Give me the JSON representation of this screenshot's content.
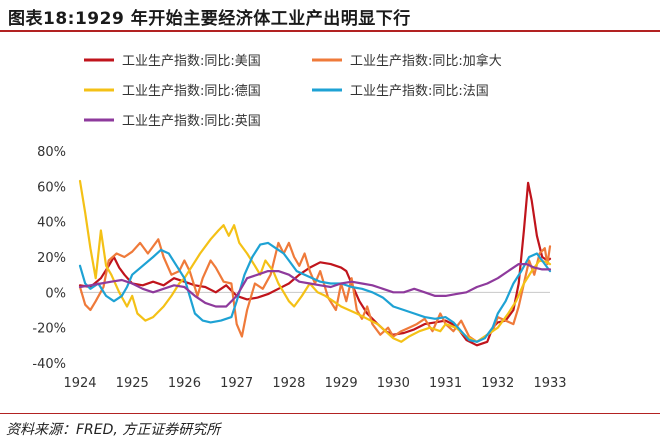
{
  "figure": {
    "title": "图表18:1929 年开始主要经济体工业产出明显下行",
    "source": "资料来源：FRED, 方正证券研究所"
  },
  "chart_data": {
    "type": "line",
    "title": "",
    "xlabel": "",
    "ylabel": "",
    "x_ticks": [
      "1924",
      "1925",
      "1926",
      "1927",
      "1928",
      "1929",
      "1930",
      "1931",
      "1932",
      "1933"
    ],
    "y_ticks": [
      "80%",
      "60%",
      "40%",
      "20%",
      "0%",
      "-20%",
      "-40%"
    ],
    "xlim": [
      1924,
      1933
    ],
    "ylim": [
      -40,
      80
    ],
    "y_unit": "%",
    "zero_line": true,
    "grid": false,
    "legend_position": "top",
    "series": [
      {
        "name": "工业生产指数:同比:美国",
        "color": "#c0141c",
        "points": [
          [
            1924.0,
            4
          ],
          [
            1924.2,
            3
          ],
          [
            1924.4,
            8
          ],
          [
            1924.55,
            15
          ],
          [
            1924.65,
            20
          ],
          [
            1924.75,
            14
          ],
          [
            1924.85,
            10
          ],
          [
            1925.0,
            5
          ],
          [
            1925.2,
            4
          ],
          [
            1925.4,
            6
          ],
          [
            1925.6,
            4
          ],
          [
            1925.8,
            8
          ],
          [
            1926.0,
            6
          ],
          [
            1926.2,
            4
          ],
          [
            1926.4,
            3
          ],
          [
            1926.6,
            0
          ],
          [
            1926.8,
            4
          ],
          [
            1927.0,
            -2
          ],
          [
            1927.2,
            -4
          ],
          [
            1927.4,
            -3
          ],
          [
            1927.6,
            -1
          ],
          [
            1927.8,
            2
          ],
          [
            1928.0,
            5
          ],
          [
            1928.2,
            10
          ],
          [
            1928.4,
            14
          ],
          [
            1928.6,
            17
          ],
          [
            1928.8,
            16
          ],
          [
            1929.0,
            14
          ],
          [
            1929.1,
            12
          ],
          [
            1929.2,
            5
          ],
          [
            1929.35,
            -5
          ],
          [
            1929.5,
            -12
          ],
          [
            1929.7,
            -18
          ],
          [
            1929.85,
            -22
          ],
          [
            1930.0,
            -24
          ],
          [
            1930.2,
            -23
          ],
          [
            1930.4,
            -21
          ],
          [
            1930.6,
            -18
          ],
          [
            1930.8,
            -17
          ],
          [
            1931.0,
            -16
          ],
          [
            1931.2,
            -19
          ],
          [
            1931.4,
            -27
          ],
          [
            1931.6,
            -30
          ],
          [
            1931.8,
            -28
          ],
          [
            1931.9,
            -20
          ],
          [
            1932.0,
            -17
          ],
          [
            1932.15,
            -16
          ],
          [
            1932.3,
            -10
          ],
          [
            1932.4,
            5
          ],
          [
            1932.5,
            35
          ],
          [
            1932.58,
            62
          ],
          [
            1932.65,
            52
          ],
          [
            1932.75,
            32
          ],
          [
            1932.85,
            20
          ],
          [
            1932.95,
            18
          ],
          [
            1933.0,
            19
          ]
        ]
      },
      {
        "name": "工业生产指数:同比:加拿大",
        "color": "#ef7a3a",
        "points": [
          [
            1924.0,
            3
          ],
          [
            1924.1,
            -7
          ],
          [
            1924.2,
            -10
          ],
          [
            1924.3,
            -5
          ],
          [
            1924.45,
            3
          ],
          [
            1924.55,
            18
          ],
          [
            1924.7,
            22
          ],
          [
            1924.85,
            20
          ],
          [
            1925.0,
            23
          ],
          [
            1925.15,
            28
          ],
          [
            1925.3,
            22
          ],
          [
            1925.4,
            26
          ],
          [
            1925.5,
            30
          ],
          [
            1925.6,
            20
          ],
          [
            1925.75,
            10
          ],
          [
            1925.9,
            12
          ],
          [
            1926.0,
            18
          ],
          [
            1926.1,
            12
          ],
          [
            1926.25,
            -2
          ],
          [
            1926.35,
            8
          ],
          [
            1926.5,
            18
          ],
          [
            1926.6,
            14
          ],
          [
            1926.75,
            6
          ],
          [
            1926.9,
            5
          ],
          [
            1927.0,
            -18
          ],
          [
            1927.1,
            -25
          ],
          [
            1927.2,
            -10
          ],
          [
            1927.35,
            5
          ],
          [
            1927.5,
            2
          ],
          [
            1927.65,
            10
          ],
          [
            1927.8,
            28
          ],
          [
            1927.9,
            22
          ],
          [
            1928.0,
            28
          ],
          [
            1928.1,
            20
          ],
          [
            1928.2,
            15
          ],
          [
            1928.3,
            22
          ],
          [
            1928.4,
            12
          ],
          [
            1928.5,
            5
          ],
          [
            1928.6,
            12
          ],
          [
            1928.75,
            -3
          ],
          [
            1928.9,
            -10
          ],
          [
            1929.0,
            5
          ],
          [
            1929.1,
            -5
          ],
          [
            1929.2,
            8
          ],
          [
            1929.3,
            -10
          ],
          [
            1929.4,
            -15
          ],
          [
            1929.5,
            -8
          ],
          [
            1929.6,
            -18
          ],
          [
            1929.75,
            -24
          ],
          [
            1929.9,
            -20
          ],
          [
            1930.0,
            -25
          ],
          [
            1930.15,
            -22
          ],
          [
            1930.3,
            -20
          ],
          [
            1930.45,
            -18
          ],
          [
            1930.6,
            -15
          ],
          [
            1930.75,
            -22
          ],
          [
            1930.9,
            -12
          ],
          [
            1931.0,
            -18
          ],
          [
            1931.15,
            -22
          ],
          [
            1931.3,
            -16
          ],
          [
            1931.45,
            -25
          ],
          [
            1931.6,
            -28
          ],
          [
            1931.75,
            -25
          ],
          [
            1931.9,
            -22
          ],
          [
            1932.0,
            -14
          ],
          [
            1932.15,
            -16
          ],
          [
            1932.3,
            -18
          ],
          [
            1932.4,
            -8
          ],
          [
            1932.5,
            5
          ],
          [
            1932.6,
            18
          ],
          [
            1932.7,
            10
          ],
          [
            1932.8,
            22
          ],
          [
            1932.9,
            25
          ],
          [
            1932.95,
            16
          ],
          [
            1933.0,
            26
          ]
        ]
      },
      {
        "name": "工业生产指数:同比:德国",
        "color": "#f4c116",
        "points": [
          [
            1924.0,
            63
          ],
          [
            1924.1,
            45
          ],
          [
            1924.2,
            25
          ],
          [
            1924.3,
            8
          ],
          [
            1924.4,
            35
          ],
          [
            1924.5,
            15
          ],
          [
            1924.6,
            10
          ],
          [
            1924.75,
            0
          ],
          [
            1924.9,
            -8
          ],
          [
            1925.0,
            -2
          ],
          [
            1925.1,
            -12
          ],
          [
            1925.25,
            -16
          ],
          [
            1925.4,
            -14
          ],
          [
            1925.6,
            -8
          ],
          [
            1925.75,
            -2
          ],
          [
            1925.9,
            5
          ],
          [
            1926.0,
            8
          ],
          [
            1926.15,
            15
          ],
          [
            1926.3,
            22
          ],
          [
            1926.5,
            30
          ],
          [
            1926.65,
            35
          ],
          [
            1926.75,
            38
          ],
          [
            1926.85,
            32
          ],
          [
            1926.95,
            38
          ],
          [
            1927.05,
            28
          ],
          [
            1927.2,
            22
          ],
          [
            1927.35,
            15
          ],
          [
            1927.45,
            10
          ],
          [
            1927.55,
            18
          ],
          [
            1927.7,
            12
          ],
          [
            1927.8,
            5
          ],
          [
            1927.9,
            0
          ],
          [
            1928.0,
            -5
          ],
          [
            1928.1,
            -8
          ],
          [
            1928.25,
            -2
          ],
          [
            1928.4,
            5
          ],
          [
            1928.55,
            0
          ],
          [
            1928.7,
            -2
          ],
          [
            1928.85,
            -5
          ],
          [
            1929.0,
            -8
          ],
          [
            1929.15,
            -10
          ],
          [
            1929.3,
            -12
          ],
          [
            1929.5,
            -15
          ],
          [
            1929.7,
            -18
          ],
          [
            1929.85,
            -22
          ],
          [
            1930.0,
            -26
          ],
          [
            1930.15,
            -28
          ],
          [
            1930.3,
            -25
          ],
          [
            1930.5,
            -22
          ],
          [
            1930.7,
            -20
          ],
          [
            1930.9,
            -22
          ],
          [
            1931.0,
            -18
          ],
          [
            1931.2,
            -20
          ],
          [
            1931.4,
            -25
          ],
          [
            1931.6,
            -28
          ],
          [
            1931.8,
            -24
          ],
          [
            1932.0,
            -20
          ],
          [
            1932.2,
            -12
          ],
          [
            1932.35,
            -5
          ],
          [
            1932.5,
            5
          ],
          [
            1932.65,
            12
          ],
          [
            1932.8,
            18
          ],
          [
            1932.95,
            17
          ],
          [
            1933.0,
            16
          ]
        ]
      },
      {
        "name": "工业生产指数:同比:法国",
        "color": "#1ea2d4",
        "points": [
          [
            1924.0,
            15
          ],
          [
            1924.1,
            5
          ],
          [
            1924.2,
            2
          ],
          [
            1924.35,
            5
          ],
          [
            1924.5,
            -2
          ],
          [
            1924.65,
            -5
          ],
          [
            1924.8,
            -2
          ],
          [
            1924.9,
            3
          ],
          [
            1925.0,
            10
          ],
          [
            1925.2,
            15
          ],
          [
            1925.4,
            20
          ],
          [
            1925.55,
            24
          ],
          [
            1925.7,
            22
          ],
          [
            1925.85,
            15
          ],
          [
            1926.0,
            8
          ],
          [
            1926.1,
            -2
          ],
          [
            1926.2,
            -12
          ],
          [
            1926.35,
            -16
          ],
          [
            1926.5,
            -17
          ],
          [
            1926.7,
            -16
          ],
          [
            1926.9,
            -14
          ],
          [
            1927.0,
            -5
          ],
          [
            1927.15,
            10
          ],
          [
            1927.3,
            20
          ],
          [
            1927.45,
            27
          ],
          [
            1927.6,
            28
          ],
          [
            1927.75,
            25
          ],
          [
            1927.9,
            22
          ],
          [
            1928.0,
            18
          ],
          [
            1928.15,
            12
          ],
          [
            1928.3,
            10
          ],
          [
            1928.45,
            8
          ],
          [
            1928.6,
            6
          ],
          [
            1928.8,
            5
          ],
          [
            1929.0,
            5
          ],
          [
            1929.2,
            3
          ],
          [
            1929.4,
            2
          ],
          [
            1929.6,
            0
          ],
          [
            1929.8,
            -3
          ],
          [
            1930.0,
            -8
          ],
          [
            1930.2,
            -10
          ],
          [
            1930.4,
            -12
          ],
          [
            1930.6,
            -14
          ],
          [
            1930.8,
            -15
          ],
          [
            1931.0,
            -14
          ],
          [
            1931.15,
            -17
          ],
          [
            1931.3,
            -22
          ],
          [
            1931.45,
            -27
          ],
          [
            1931.6,
            -28
          ],
          [
            1931.75,
            -26
          ],
          [
            1931.9,
            -20
          ],
          [
            1932.0,
            -12
          ],
          [
            1932.15,
            -5
          ],
          [
            1932.3,
            5
          ],
          [
            1932.45,
            12
          ],
          [
            1932.6,
            20
          ],
          [
            1932.75,
            22
          ],
          [
            1932.9,
            16
          ],
          [
            1933.0,
            12
          ]
        ]
      },
      {
        "name": "工业生产指数:同比:英国",
        "color": "#8e3a9c",
        "points": [
          [
            1924.0,
            3
          ],
          [
            1924.2,
            4
          ],
          [
            1924.4,
            5
          ],
          [
            1924.6,
            6
          ],
          [
            1924.8,
            7
          ],
          [
            1925.0,
            5
          ],
          [
            1925.2,
            2
          ],
          [
            1925.4,
            0
          ],
          [
            1925.6,
            2
          ],
          [
            1925.8,
            4
          ],
          [
            1926.0,
            3
          ],
          [
            1926.2,
            -2
          ],
          [
            1926.4,
            -6
          ],
          [
            1926.6,
            -8
          ],
          [
            1926.8,
            -8
          ],
          [
            1927.0,
            -2
          ],
          [
            1927.2,
            8
          ],
          [
            1927.4,
            10
          ],
          [
            1927.6,
            12
          ],
          [
            1927.8,
            12
          ],
          [
            1928.0,
            10
          ],
          [
            1928.2,
            6
          ],
          [
            1928.4,
            5
          ],
          [
            1928.6,
            4
          ],
          [
            1928.8,
            3
          ],
          [
            1929.0,
            5
          ],
          [
            1929.2,
            6
          ],
          [
            1929.4,
            5
          ],
          [
            1929.6,
            4
          ],
          [
            1929.8,
            2
          ],
          [
            1930.0,
            0
          ],
          [
            1930.2,
            0
          ],
          [
            1930.4,
            2
          ],
          [
            1930.6,
            0
          ],
          [
            1930.8,
            -2
          ],
          [
            1931.0,
            -2
          ],
          [
            1931.2,
            -1
          ],
          [
            1931.4,
            0
          ],
          [
            1931.6,
            3
          ],
          [
            1931.8,
            5
          ],
          [
            1932.0,
            8
          ],
          [
            1932.2,
            12
          ],
          [
            1932.4,
            16
          ],
          [
            1932.55,
            16
          ],
          [
            1932.7,
            14
          ],
          [
            1932.85,
            13
          ],
          [
            1933.0,
            13
          ]
        ]
      }
    ]
  }
}
